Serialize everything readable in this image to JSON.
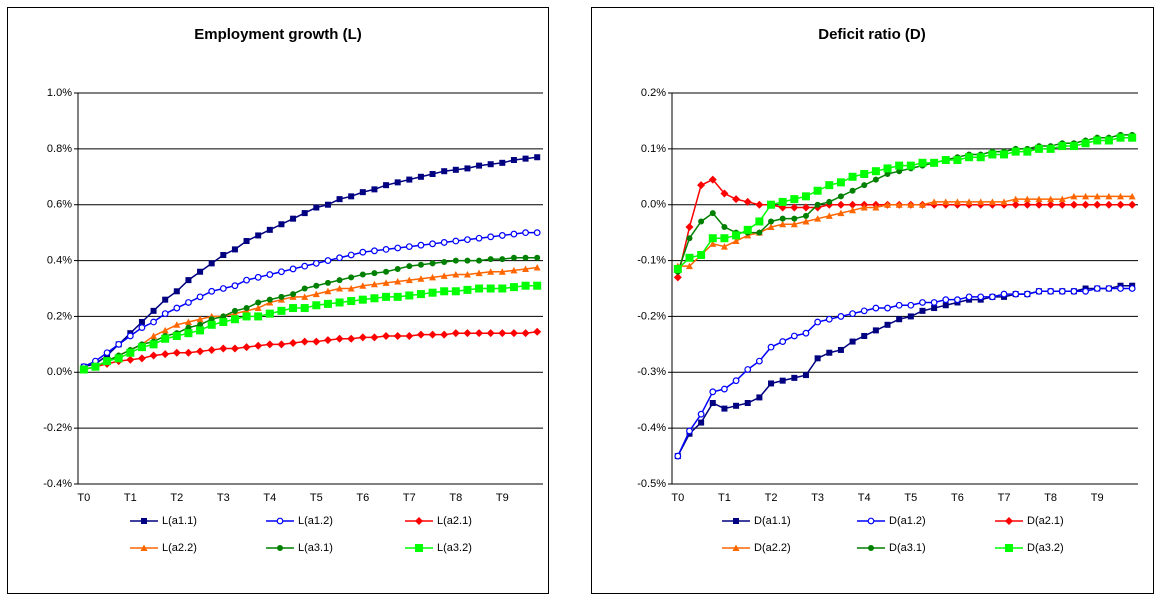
{
  "chart_data": [
    {
      "type": "line",
      "title": "Employment growth (L)",
      "categories": [
        "T0",
        null,
        null,
        null,
        "T1",
        null,
        null,
        null,
        "T2",
        null,
        null,
        null,
        "T3",
        null,
        null,
        null,
        "T4",
        null,
        null,
        null,
        "T5",
        null,
        null,
        null,
        "T6",
        null,
        null,
        null,
        "T7",
        null,
        null,
        null,
        "T8",
        null,
        null,
        null,
        "T9",
        null,
        null,
        null
      ],
      "ylim": [
        -0.4,
        1.0
      ],
      "yticks": [
        {
          "value": -0.4,
          "label": "-0.4%"
        },
        {
          "value": -0.2,
          "label": "-0.2%"
        },
        {
          "value": 0,
          "label": "0.0%"
        },
        {
          "value": 0.2,
          "label": "0.2%"
        },
        {
          "value": 0.4,
          "label": "0.4%"
        },
        {
          "value": 0.6,
          "label": "0.6%"
        },
        {
          "value": 0.8,
          "label": "0.8%"
        },
        {
          "value": 1.0,
          "label": "1.0%"
        }
      ],
      "grid": true,
      "series": [
        {
          "name": "L(a1.1)",
          "color": "#000080",
          "marker": "square",
          "values": [
            0.02,
            0.03,
            0.06,
            0.1,
            0.14,
            0.18,
            0.22,
            0.26,
            0.29,
            0.33,
            0.36,
            0.39,
            0.42,
            0.44,
            0.47,
            0.49,
            0.51,
            0.53,
            0.55,
            0.57,
            0.59,
            0.6,
            0.62,
            0.63,
            0.645,
            0.655,
            0.67,
            0.68,
            0.69,
            0.7,
            0.71,
            0.72,
            0.725,
            0.73,
            0.74,
            0.745,
            0.75,
            0.76,
            0.765,
            0.77
          ]
        },
        {
          "name": "L(a1.2)",
          "color": "#0000ff",
          "marker": "open-circle",
          "values": [
            0.02,
            0.04,
            0.07,
            0.1,
            0.13,
            0.16,
            0.18,
            0.21,
            0.23,
            0.25,
            0.27,
            0.29,
            0.3,
            0.31,
            0.33,
            0.34,
            0.35,
            0.36,
            0.37,
            0.38,
            0.39,
            0.4,
            0.41,
            0.42,
            0.43,
            0.435,
            0.44,
            0.445,
            0.45,
            0.455,
            0.46,
            0.465,
            0.47,
            0.475,
            0.48,
            0.485,
            0.49,
            0.495,
            0.5,
            0.5
          ]
        },
        {
          "name": "L(a2.1)",
          "color": "#ff0000",
          "marker": "diamond",
          "values": [
            0.01,
            0.02,
            0.03,
            0.04,
            0.045,
            0.05,
            0.06,
            0.065,
            0.07,
            0.07,
            0.075,
            0.08,
            0.085,
            0.085,
            0.09,
            0.095,
            0.1,
            0.1,
            0.105,
            0.11,
            0.11,
            0.115,
            0.12,
            0.12,
            0.125,
            0.125,
            0.13,
            0.13,
            0.13,
            0.135,
            0.135,
            0.135,
            0.14,
            0.14,
            0.14,
            0.14,
            0.14,
            0.14,
            0.14,
            0.145
          ]
        },
        {
          "name": "L(a2.2)",
          "color": "#ff6600",
          "marker": "triangle",
          "values": [
            0.01,
            0.02,
            0.04,
            0.06,
            0.08,
            0.1,
            0.13,
            0.15,
            0.17,
            0.18,
            0.19,
            0.2,
            0.2,
            0.21,
            0.22,
            0.23,
            0.25,
            0.26,
            0.27,
            0.27,
            0.28,
            0.29,
            0.3,
            0.3,
            0.31,
            0.315,
            0.32,
            0.325,
            0.33,
            0.335,
            0.34,
            0.345,
            0.35,
            0.35,
            0.355,
            0.36,
            0.36,
            0.365,
            0.37,
            0.375
          ]
        },
        {
          "name": "L(a3.1)",
          "color": "#008000",
          "marker": "circle",
          "values": [
            0.01,
            0.02,
            0.04,
            0.06,
            0.08,
            0.1,
            0.11,
            0.13,
            0.14,
            0.16,
            0.17,
            0.19,
            0.2,
            0.22,
            0.23,
            0.25,
            0.26,
            0.27,
            0.28,
            0.3,
            0.31,
            0.32,
            0.33,
            0.34,
            0.35,
            0.355,
            0.36,
            0.37,
            0.38,
            0.385,
            0.39,
            0.395,
            0.4,
            0.4,
            0.4,
            0.405,
            0.405,
            0.41,
            0.41,
            0.41
          ]
        },
        {
          "name": "L(a3.2)",
          "color": "#00ff00",
          "marker": "big-square",
          "values": [
            0.01,
            0.02,
            0.04,
            0.05,
            0.07,
            0.09,
            0.1,
            0.12,
            0.13,
            0.14,
            0.15,
            0.17,
            0.18,
            0.19,
            0.2,
            0.2,
            0.21,
            0.22,
            0.23,
            0.23,
            0.24,
            0.245,
            0.25,
            0.255,
            0.26,
            0.265,
            0.27,
            0.27,
            0.275,
            0.28,
            0.285,
            0.29,
            0.29,
            0.295,
            0.3,
            0.3,
            0.3,
            0.305,
            0.31,
            0.31
          ]
        }
      ]
    },
    {
      "type": "line",
      "title": "Deficit ratio (D)",
      "categories": [
        "T0",
        null,
        null,
        null,
        "T1",
        null,
        null,
        null,
        "T2",
        null,
        null,
        null,
        "T3",
        null,
        null,
        null,
        "T4",
        null,
        null,
        null,
        "T5",
        null,
        null,
        null,
        "T6",
        null,
        null,
        null,
        "T7",
        null,
        null,
        null,
        "T8",
        null,
        null,
        null,
        "T9",
        null,
        null,
        null
      ],
      "ylim": [
        -0.5,
        0.2
      ],
      "yticks": [
        {
          "value": -0.5,
          "label": "-0.5%"
        },
        {
          "value": -0.4,
          "label": "-0.4%"
        },
        {
          "value": -0.3,
          "label": "-0.3%"
        },
        {
          "value": -0.2,
          "label": "-0.2%"
        },
        {
          "value": -0.1,
          "label": "-0.1%"
        },
        {
          "value": 0,
          "label": "0.0%"
        },
        {
          "value": 0.1,
          "label": "0.1%"
        },
        {
          "value": 0.2,
          "label": "0.2%"
        }
      ],
      "grid": true,
      "series": [
        {
          "name": "D(a1.1)",
          "color": "#000080",
          "marker": "square",
          "values": [
            -0.45,
            -0.41,
            -0.39,
            -0.355,
            -0.365,
            -0.36,
            -0.355,
            -0.345,
            -0.32,
            -0.315,
            -0.31,
            -0.305,
            -0.275,
            -0.265,
            -0.26,
            -0.245,
            -0.235,
            -0.225,
            -0.215,
            -0.205,
            -0.2,
            -0.19,
            -0.185,
            -0.18,
            -0.175,
            -0.17,
            -0.17,
            -0.165,
            -0.165,
            -0.16,
            -0.16,
            -0.155,
            -0.155,
            -0.155,
            -0.155,
            -0.15,
            -0.15,
            -0.15,
            -0.145,
            -0.145
          ]
        },
        {
          "name": "D(a1.2)",
          "color": "#0000ff",
          "marker": "open-circle",
          "values": [
            -0.45,
            -0.405,
            -0.375,
            -0.335,
            -0.33,
            -0.315,
            -0.295,
            -0.28,
            -0.255,
            -0.245,
            -0.235,
            -0.23,
            -0.21,
            -0.205,
            -0.2,
            -0.195,
            -0.19,
            -0.185,
            -0.185,
            -0.18,
            -0.18,
            -0.175,
            -0.175,
            -0.17,
            -0.17,
            -0.165,
            -0.165,
            -0.165,
            -0.16,
            -0.16,
            -0.16,
            -0.155,
            -0.155,
            -0.155,
            -0.155,
            -0.155,
            -0.15,
            -0.15,
            -0.15,
            -0.15
          ]
        },
        {
          "name": "D(a2.1)",
          "color": "#ff0000",
          "marker": "diamond",
          "values": [
            -0.13,
            -0.04,
            0.035,
            0.045,
            0.02,
            0.01,
            0.005,
            0,
            0,
            -0.005,
            -0.005,
            -0.005,
            -0.005,
            0,
            0,
            0,
            0,
            0,
            0,
            0,
            0,
            0,
            0,
            0,
            0,
            0,
            0,
            0,
            0,
            0,
            0,
            0,
            0,
            0,
            0,
            0,
            0,
            0,
            0,
            0
          ]
        },
        {
          "name": "D(a2.2)",
          "color": "#ff6600",
          "marker": "triangle",
          "values": [
            -0.11,
            -0.11,
            -0.09,
            -0.07,
            -0.075,
            -0.065,
            -0.055,
            -0.05,
            -0.04,
            -0.035,
            -0.035,
            -0.03,
            -0.025,
            -0.02,
            -0.015,
            -0.01,
            -0.005,
            -0.005,
            0,
            0,
            0,
            0,
            0.005,
            0.005,
            0.005,
            0.005,
            0.005,
            0.005,
            0.005,
            0.01,
            0.01,
            0.01,
            0.01,
            0.01,
            0.015,
            0.015,
            0.015,
            0.015,
            0.015,
            0.015
          ]
        },
        {
          "name": "D(a3.1)",
          "color": "#008000",
          "marker": "circle",
          "values": [
            -0.12,
            -0.06,
            -0.03,
            -0.015,
            -0.04,
            -0.05,
            -0.05,
            -0.05,
            -0.03,
            -0.025,
            -0.025,
            -0.02,
            0,
            0.005,
            0.015,
            0.025,
            0.035,
            0.045,
            0.055,
            0.06,
            0.065,
            0.07,
            0.075,
            0.08,
            0.085,
            0.09,
            0.09,
            0.095,
            0.095,
            0.1,
            0.1,
            0.105,
            0.105,
            0.11,
            0.11,
            0.115,
            0.12,
            0.12,
            0.125,
            0.125
          ]
        },
        {
          "name": "D(a3.2)",
          "color": "#00ff00",
          "marker": "big-square",
          "values": [
            -0.115,
            -0.095,
            -0.09,
            -0.06,
            -0.06,
            -0.055,
            -0.045,
            -0.03,
            0,
            0.005,
            0.01,
            0.015,
            0.025,
            0.035,
            0.04,
            0.05,
            0.055,
            0.06,
            0.065,
            0.07,
            0.07,
            0.075,
            0.075,
            0.08,
            0.08,
            0.085,
            0.085,
            0.09,
            0.09,
            0.095,
            0.095,
            0.1,
            0.1,
            0.105,
            0.105,
            0.11,
            0.115,
            0.115,
            0.12,
            0.12
          ]
        }
      ]
    }
  ]
}
